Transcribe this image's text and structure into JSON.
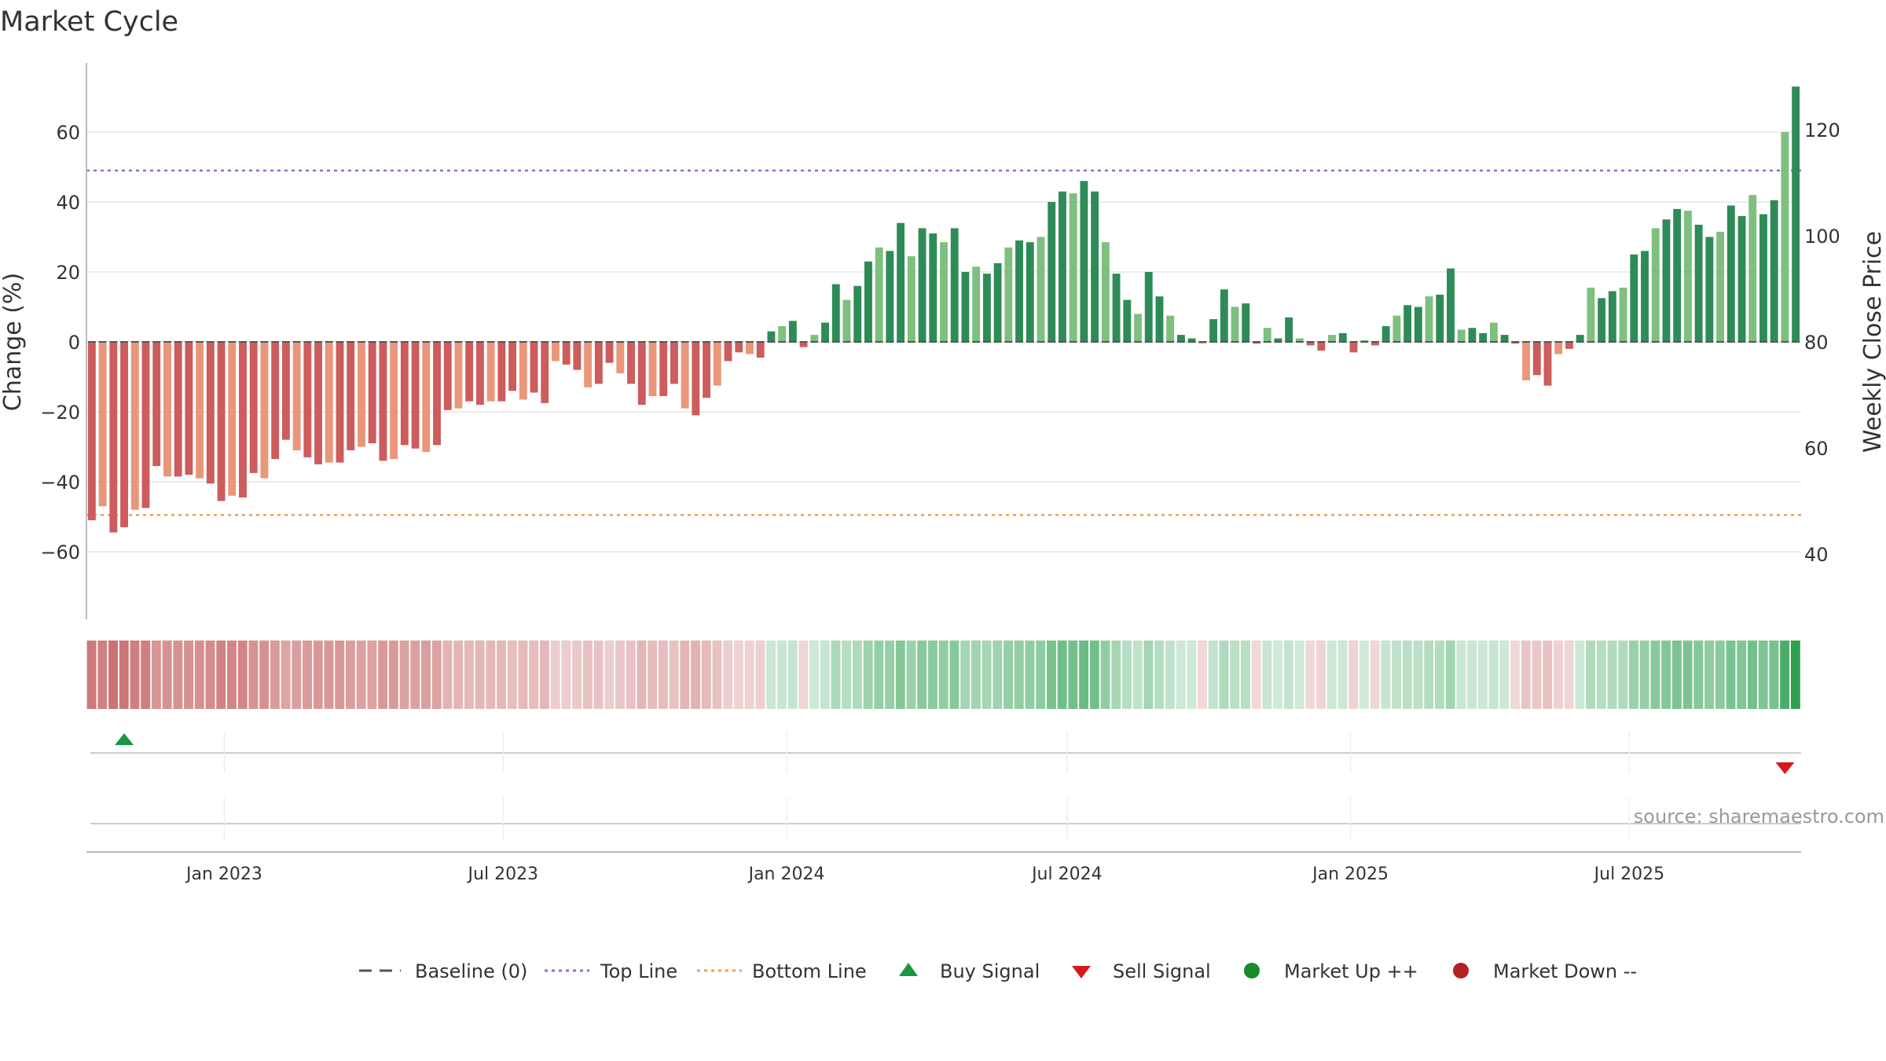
{
  "title": "Market Cycle",
  "source": "source: sharemaestro.com",
  "colors": {
    "strong_up": "#2e8b57",
    "light_up": "#7fbf7f",
    "strong_down": "#cd5c5c",
    "light_down": "#e9967a",
    "top_line": "#9966cc",
    "bottom_line": "#f0a050",
    "baseline": "#555555",
    "buy": "#1a9641",
    "sell": "#d7191c",
    "market_up": "#1a8a2a",
    "market_down": "#b22222",
    "grid": "#e6e6e6"
  },
  "chart_data": {
    "type": "bar",
    "left_axis": {
      "label": "Change (%)",
      "range": [
        -80,
        80
      ],
      "ticks": [
        60,
        40,
        20,
        0,
        -20,
        -40,
        -60
      ],
      "tick_labels": [
        "60",
        "40",
        "20",
        "0",
        "−20",
        "−40",
        "−60"
      ]
    },
    "right_axis": {
      "label": "Weekly Close Price",
      "range": [
        24,
        134
      ],
      "ticks": [
        120,
        100,
        80,
        60,
        40
      ],
      "tick_labels": [
        "120",
        "100",
        "80",
        "60",
        "40"
      ]
    },
    "x_axis": {
      "type": "date",
      "ticks": [
        "2023-01-01",
        "2023-07-01",
        "2024-01-01",
        "2024-07-01",
        "2025-01-01",
        "2025-07-01"
      ],
      "tick_labels": [
        "Jan 2023",
        "Jul 2023",
        "Jan 2024",
        "Jul 2024",
        "Jan 2025",
        "Jul 2025"
      ]
    },
    "top_line": 49,
    "bottom_line": -49.5,
    "series": [
      {
        "values": [
          -51,
          -47,
          -54.5,
          -53,
          -48,
          -47.5,
          -35.5,
          -38.5,
          -38.5,
          -38,
          -39,
          -40.5,
          -45.5,
          -44,
          -44.5,
          -37.5,
          -39,
          -33.5,
          -28,
          -31,
          -33,
          -35,
          -34.5,
          -34.5,
          -31,
          -30,
          -29,
          -34,
          -33.5,
          -29.5,
          -30.5,
          -31.5,
          -29.5,
          -19.5,
          -19,
          -17,
          -18,
          -17,
          -17,
          -14,
          -16.5,
          -14.5,
          -17.5,
          -5.5,
          -6.5,
          -8,
          -13,
          -12,
          -6,
          -9,
          -12,
          -18,
          -15.5,
          -15.5,
          -12,
          -19,
          -21,
          -16,
          -12.5,
          -5.5,
          -3,
          -3.5,
          -4.5,
          3,
          4.5,
          6,
          -1.5,
          2,
          5.5,
          16.5,
          12,
          16,
          23,
          27,
          26,
          34,
          24.5,
          32.5,
          31,
          28.5,
          32.5,
          20,
          21.5,
          19.5,
          22.5,
          27,
          29,
          28.5,
          30,
          40,
          43,
          42.5,
          46,
          43,
          28.5,
          19.5,
          12,
          8,
          20,
          13,
          7.5,
          2,
          1,
          -0.5,
          6.5,
          15,
          10,
          11,
          -0.5,
          4,
          1,
          7,
          1,
          -1,
          -2.5,
          2,
          2.5,
          -3,
          0.5,
          -1,
          4.5,
          7.5,
          10.5,
          10,
          13,
          13.5,
          21,
          3.5,
          4,
          2.5,
          5.5,
          2,
          -0.5,
          -11,
          -9.5,
          -12.5,
          -3.5,
          -2,
          2,
          15.5,
          12.5,
          14.5,
          15.5,
          25,
          26,
          32.5,
          35,
          38,
          37.5,
          33.5,
          30,
          31.5,
          39,
          36,
          42,
          36.5,
          40.5,
          60,
          73
        ]
      }
    ],
    "signals": [
      {
        "type": "buy",
        "date": "2022-10-28"
      },
      {
        "type": "sell",
        "date": "2025-10-10"
      }
    ],
    "legend": [
      "Baseline (0)",
      "Top Line",
      "Bottom Line",
      "Buy Signal",
      "Sell Signal",
      "Market Up ++",
      "Market Down --"
    ],
    "legend_position": "bottom-center"
  }
}
